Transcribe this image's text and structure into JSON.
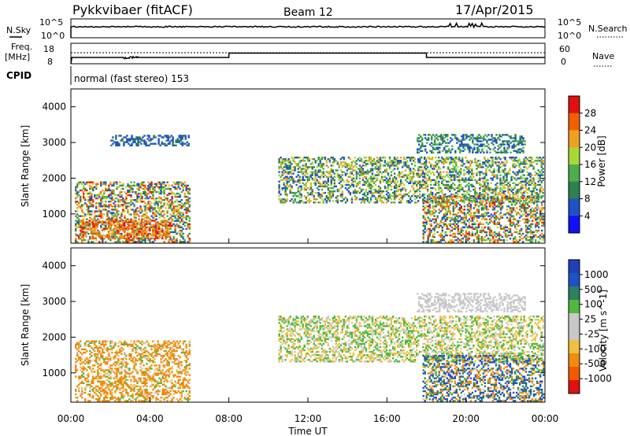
{
  "header": {
    "station": "Pykkvibaer (fitACF)",
    "beam": "Beam 12",
    "date": "17/Apr/2015"
  },
  "strip_labels": {
    "nsky": "N.Sky",
    "nsky_tick_top": "10^5",
    "nsky_tick_bottom": "10^0",
    "nsearch": "N.Search",
    "nsearch_tick_top": "10^5",
    "nsearch_tick_bottom": "10^0",
    "freq": "Freq.",
    "freq_unit": "[MHz]",
    "freq_tick_top": "18",
    "freq_tick_bottom": "8",
    "nave": "Nave",
    "nave_tick_top": "60",
    "nave_tick_bottom": "0",
    "cpid": "CPID",
    "cpid_text": "normal (fast stereo) 153"
  },
  "colors": {
    "power": [
      "#1010ff",
      "#2050c8",
      "#2e8050",
      "#4cae4c",
      "#a8d838",
      "#f0a020",
      "#f06000",
      "#e01010"
    ],
    "velocity": [
      "#e01010",
      "#f05a00",
      "#f08c10",
      "#f0c040",
      "#c8c8c8",
      "#c8c8c8",
      "#50b840",
      "#2e8060",
      "#2050c8",
      "#2040b8"
    ]
  },
  "chart_data": [
    {
      "type": "heatmap",
      "quantity": "Power",
      "ylabel": "Slant Range [km]",
      "colorbar_label": "Power [dB]",
      "colorbar_ticks": [
        "4",
        "8",
        "12",
        "16",
        "20",
        "24",
        "28"
      ],
      "x_ticks": [
        "00:00",
        "04:00",
        "08:00",
        "12:00",
        "16:00",
        "20:00",
        "00:00"
      ],
      "y_ticks": [
        "1000",
        "2000",
        "3000",
        "4000"
      ],
      "xlim_hours": [
        0,
        24
      ],
      "ylim_km": [
        180,
        4500
      ],
      "colorbar_range_db": [
        0,
        32
      ],
      "regions": [
        {
          "t0": 0.2,
          "t1": 6.0,
          "r0": 200,
          "r1": 1900,
          "v0": 4,
          "v1": 30
        },
        {
          "t0": 0.5,
          "t1": 5.0,
          "r0": 300,
          "r1": 800,
          "v0": 20,
          "v1": 30
        },
        {
          "t0": 10.5,
          "t1": 23.9,
          "r0": 1300,
          "r1": 2600,
          "v0": 4,
          "v1": 24
        },
        {
          "t0": 17.8,
          "t1": 23.9,
          "r0": 200,
          "r1": 1500,
          "v0": 4,
          "v1": 30
        },
        {
          "t0": 17.5,
          "t1": 23.0,
          "r0": 2700,
          "r1": 3200,
          "v0": 4,
          "v1": 16
        },
        {
          "t0": 2.0,
          "t1": 6.0,
          "r0": 2900,
          "r1": 3200,
          "v0": 4,
          "v1": 10
        }
      ]
    },
    {
      "type": "heatmap",
      "quantity": "Velocity",
      "xlabel": "Time UT",
      "ylabel": "Slant Range [km]",
      "colorbar_label": "Velocity [m s^-1]",
      "colorbar_ticks": [
        "1000",
        "500",
        "100",
        "25",
        "-25",
        "-100",
        "-500",
        "-1000"
      ],
      "x_ticks": [
        "00:00",
        "04:00",
        "08:00",
        "12:00",
        "16:00",
        "20:00",
        "00:00"
      ],
      "y_ticks": [
        "1000",
        "2000",
        "3000",
        "4000"
      ],
      "xlim_hours": [
        0,
        24
      ],
      "ylim_km": [
        180,
        4500
      ],
      "regions": [
        {
          "t0": 0.2,
          "t1": 6.0,
          "r0": 200,
          "r1": 1900,
          "v0": -500,
          "v1": 100
        },
        {
          "t0": 10.5,
          "t1": 23.9,
          "r0": 1300,
          "r1": 2600,
          "v0": -100,
          "v1": 100
        },
        {
          "t0": 17.8,
          "t1": 23.9,
          "r0": 200,
          "r1": 1500,
          "v0": -500,
          "v1": 1000
        },
        {
          "t0": 17.5,
          "t1": 23.0,
          "r0": 2700,
          "r1": 3200,
          "v0": -25,
          "v1": 25
        }
      ]
    }
  ]
}
